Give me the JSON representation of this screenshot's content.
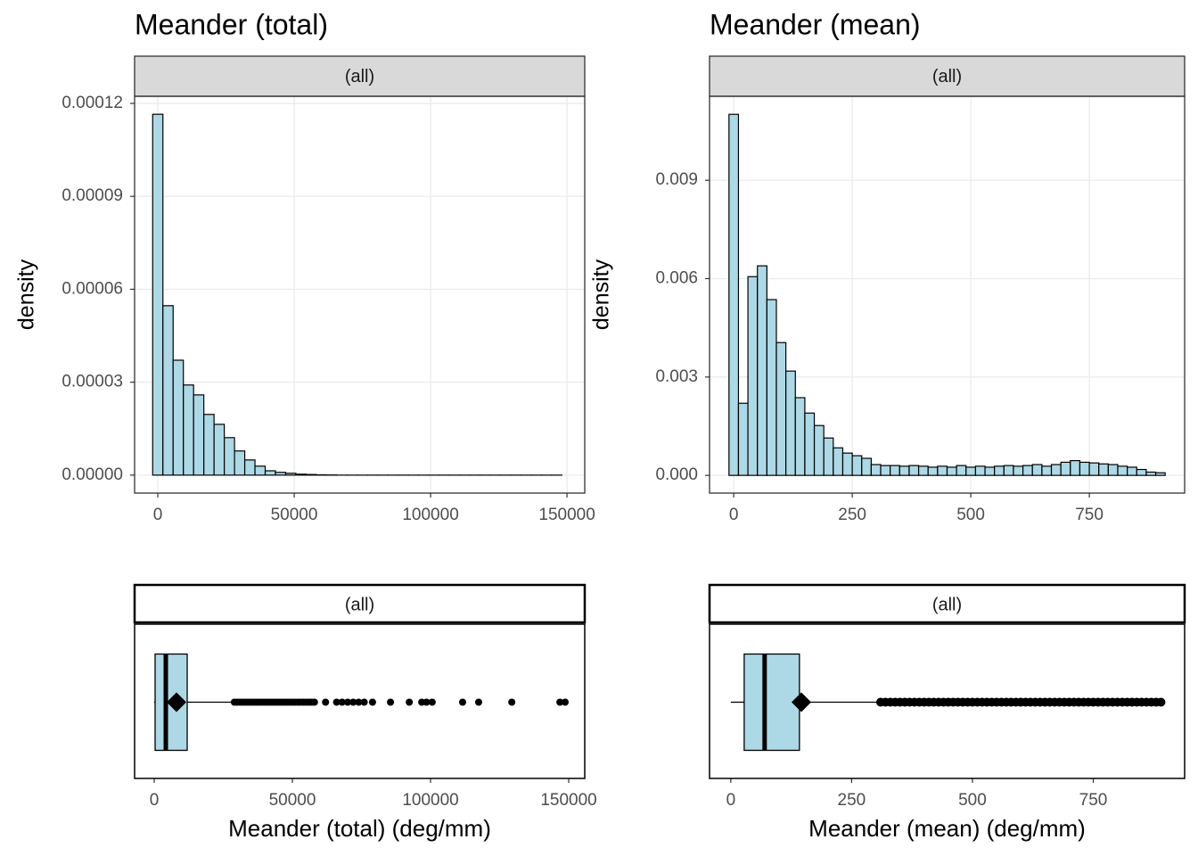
{
  "chart_data": [
    {
      "type": "histogram",
      "title": "Meander (total)",
      "facet": "(all)",
      "ylabel": "density",
      "color": "#add8e6",
      "grid": true,
      "bins": [
        -1875,
        1875,
        5625,
        9375,
        13125,
        16875,
        20625,
        24375,
        28125,
        31875,
        35625,
        39375,
        43125,
        46875,
        50625,
        54375,
        58125,
        61875,
        65625,
        69375,
        73125,
        76875,
        80625,
        84375,
        88125,
        91875,
        95625,
        99375,
        103125,
        106875,
        110625,
        114375,
        118125,
        121875,
        125625,
        129375,
        133125,
        136875,
        140625,
        144375,
        148125
      ],
      "values": [
        0.0001165,
        5.47e-05,
        3.71e-05,
        2.91e-05,
        2.59e-05,
        1.96e-05,
        1.64e-05,
        1.21e-05,
        7.8e-06,
        4.9e-06,
        2.9e-06,
        1.4e-06,
        9e-07,
        6e-07,
        3e-07,
        2e-07,
        1e-07,
        5e-08,
        0,
        0,
        0,
        0,
        0,
        0,
        0,
        0,
        0,
        0,
        0,
        0,
        0,
        0,
        0,
        0,
        0,
        0,
        0,
        0,
        0,
        0
      ],
      "xlim": [
        -8500,
        156500
      ],
      "xticks": [
        0,
        50000,
        100000,
        150000
      ],
      "ylim": [
        -5.8e-06,
        0.0001223
      ],
      "yticks": [
        {
          "value": 0,
          "label": "0.00000"
        },
        3e-05,
        6e-05,
        9e-05,
        0.00012
      ]
    },
    {
      "type": "histogram",
      "title": "Meander (mean)",
      "facet": "(all)",
      "ylabel": "density",
      "color": "#add8e6",
      "grid": true,
      "bins": [
        -10,
        10,
        30,
        50,
        70,
        90,
        110,
        130,
        150,
        170,
        190,
        210,
        230,
        250,
        270,
        290,
        310,
        330,
        350,
        370,
        390,
        410,
        430,
        450,
        470,
        490,
        510,
        530,
        550,
        570,
        590,
        610,
        630,
        650,
        670,
        690,
        710,
        730,
        750,
        770,
        790,
        810,
        830,
        850,
        870,
        890,
        910
      ],
      "values": [
        0.01101,
        0.0022,
        0.00606,
        0.00639,
        0.00536,
        0.00405,
        0.00318,
        0.00237,
        0.0019,
        0.00152,
        0.00114,
        0.00084,
        0.00068,
        0.0006,
        0.00052,
        0.00033,
        0.0003,
        0.0003,
        0.00028,
        0.0003,
        0.00028,
        0.00025,
        0.00028,
        0.00025,
        0.0003,
        0.00025,
        0.00028,
        0.00025,
        0.00028,
        0.0003,
        0.00028,
        0.0003,
        0.00033,
        0.00028,
        0.00033,
        0.0004,
        0.00045,
        0.0004,
        0.00038,
        0.00035,
        0.00033,
        0.00028,
        0.00025,
        0.00018,
        0.0001,
        8e-05
      ],
      "xlim": [
        -51,
        951
      ],
      "xticks": [
        0,
        250,
        500,
        750
      ],
      "ylim": [
        -0.00054,
        0.01156
      ],
      "yticks": [
        {
          "value": 0,
          "label": "0.000"
        },
        0.003,
        0.006,
        0.009
      ]
    },
    {
      "type": "boxplot",
      "facet": "(all)",
      "xlabel": "Meander (total) (deg/mm)",
      "color": "#add8e6",
      "stats": {
        "min": 0,
        "q1": 323,
        "median": 4194,
        "q3": 11935,
        "whisker_high": 28065,
        "mean": 8065
      },
      "outliers": [
        29000,
        30000,
        31000,
        32000,
        33000,
        34000,
        35000,
        36000,
        37000,
        38000,
        39000,
        40000,
        41000,
        42000,
        43000,
        44000,
        45000,
        46000,
        47000,
        48000,
        49000,
        50000,
        51000,
        52000,
        53000,
        54000,
        55000,
        56000,
        57000,
        58000,
        62000,
        66000,
        68000,
        70000,
        72000,
        74000,
        76000,
        79000,
        85500,
        92300,
        96800,
        98500,
        100600,
        111600,
        117400,
        129400,
        146800,
        148700
      ],
      "xlim": [
        -7100,
        155800
      ],
      "xticks": [
        0,
        50000,
        100000,
        150000
      ]
    },
    {
      "type": "boxplot",
      "facet": "(all)",
      "xlabel": "Meander (mean) (deg/mm)",
      "color": "#add8e6",
      "stats": {
        "min": 0,
        "q1": 27.7,
        "median": 70,
        "q3": 142,
        "whisker_high": 304,
        "mean": 146
      },
      "outliers": [
        310,
        320,
        330,
        340,
        350,
        360,
        370,
        380,
        390,
        400,
        410,
        420,
        430,
        440,
        450,
        460,
        470,
        480,
        490,
        500,
        510,
        520,
        530,
        540,
        550,
        560,
        570,
        580,
        590,
        600,
        610,
        620,
        630,
        640,
        650,
        660,
        670,
        680,
        690,
        700,
        710,
        720,
        730,
        740,
        750,
        760,
        770,
        780,
        790,
        800,
        810,
        820,
        830,
        840,
        850,
        860,
        870,
        880,
        890
      ],
      "xlim": [
        -44,
        939
      ],
      "xticks": [
        0,
        250,
        500,
        750
      ]
    }
  ]
}
